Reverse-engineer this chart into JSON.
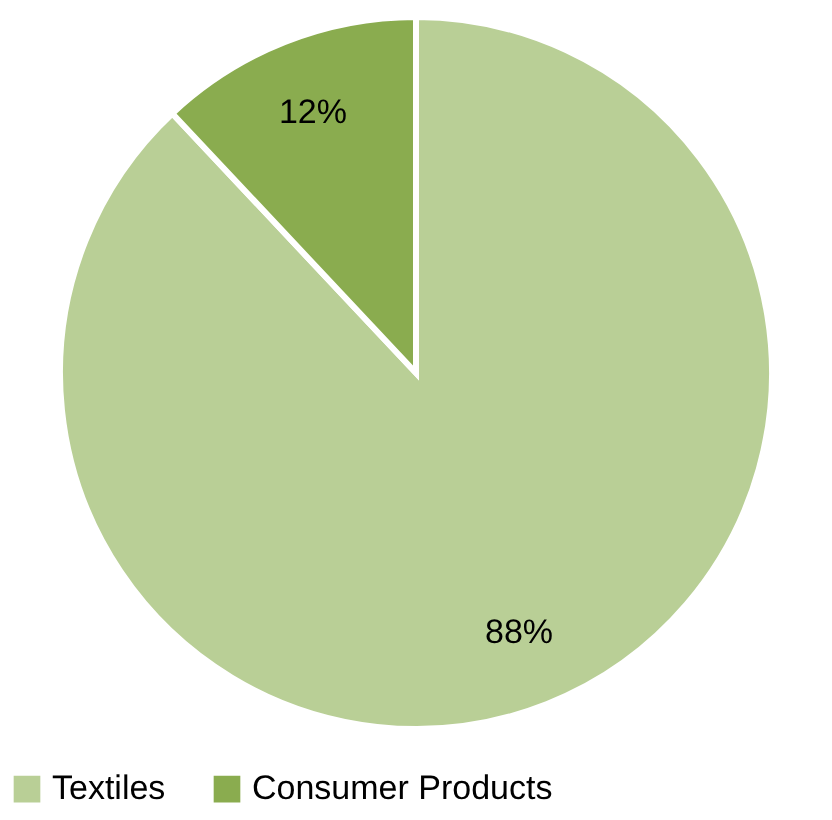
{
  "chart_data": {
    "type": "pie",
    "categories": [
      "Textiles",
      "Consumer Products"
    ],
    "values": [
      88,
      12
    ],
    "colors": [
      "#b9cf96",
      "#8aac4f"
    ],
    "value_labels": [
      "88%",
      "12%"
    ],
    "legend": "bottom"
  }
}
